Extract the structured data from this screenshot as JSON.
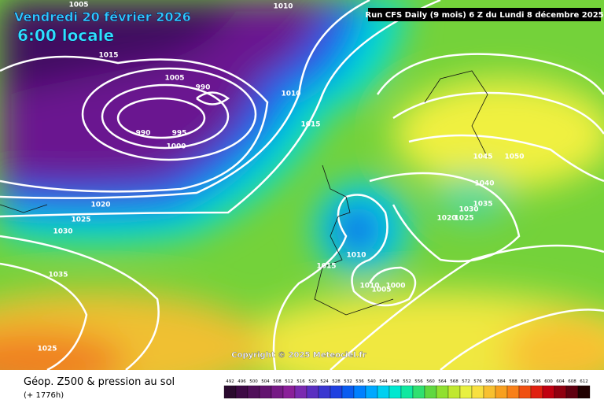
{
  "header": {
    "date": "Vendredi 20 février 2026",
    "time": "6:00 locale",
    "run": "Run CFS Daily (9 mois) 6 Z du Lundi 8 décembre 2025"
  },
  "copyright": "Copyright © 2025 Meteociel.fr",
  "footer": {
    "title": "Géop. Z500 & pression au sol",
    "lead": "(+ 1776h)"
  },
  "scale": {
    "labels": [
      492,
      496,
      500,
      504,
      508,
      512,
      516,
      520,
      524,
      528,
      532,
      536,
      540,
      544,
      548,
      552,
      556,
      560,
      564,
      568,
      572,
      576,
      580,
      584,
      588,
      592,
      596,
      600,
      604,
      608,
      612
    ],
    "colors": [
      "#2a0a2e",
      "#3d0a45",
      "#50105a",
      "#631470",
      "#761a85",
      "#8a1f99",
      "#7a2ab0",
      "#5a2fc0",
      "#3a36d0",
      "#1f40e0",
      "#0a5cf0",
      "#0080ff",
      "#00a8ff",
      "#00d0f0",
      "#00e8d0",
      "#10e8a0",
      "#30e070",
      "#60d840",
      "#90e030",
      "#c0e830",
      "#e8f040",
      "#f8e040",
      "#f8c030",
      "#f8a020",
      "#f88018",
      "#f05010",
      "#e02010",
      "#c00010",
      "#900010",
      "#600010",
      "#200000"
    ]
  },
  "isobar_labels": [
    1005,
    1010,
    1015,
    1005,
    990,
    990,
    995,
    1000,
    1010,
    1015,
    1020,
    1025,
    1030,
    1035,
    1025,
    1045,
    1050,
    1040,
    1035,
    1030,
    1020,
    1025,
    1010,
    1015,
    1010,
    1005,
    1000
  ]
}
